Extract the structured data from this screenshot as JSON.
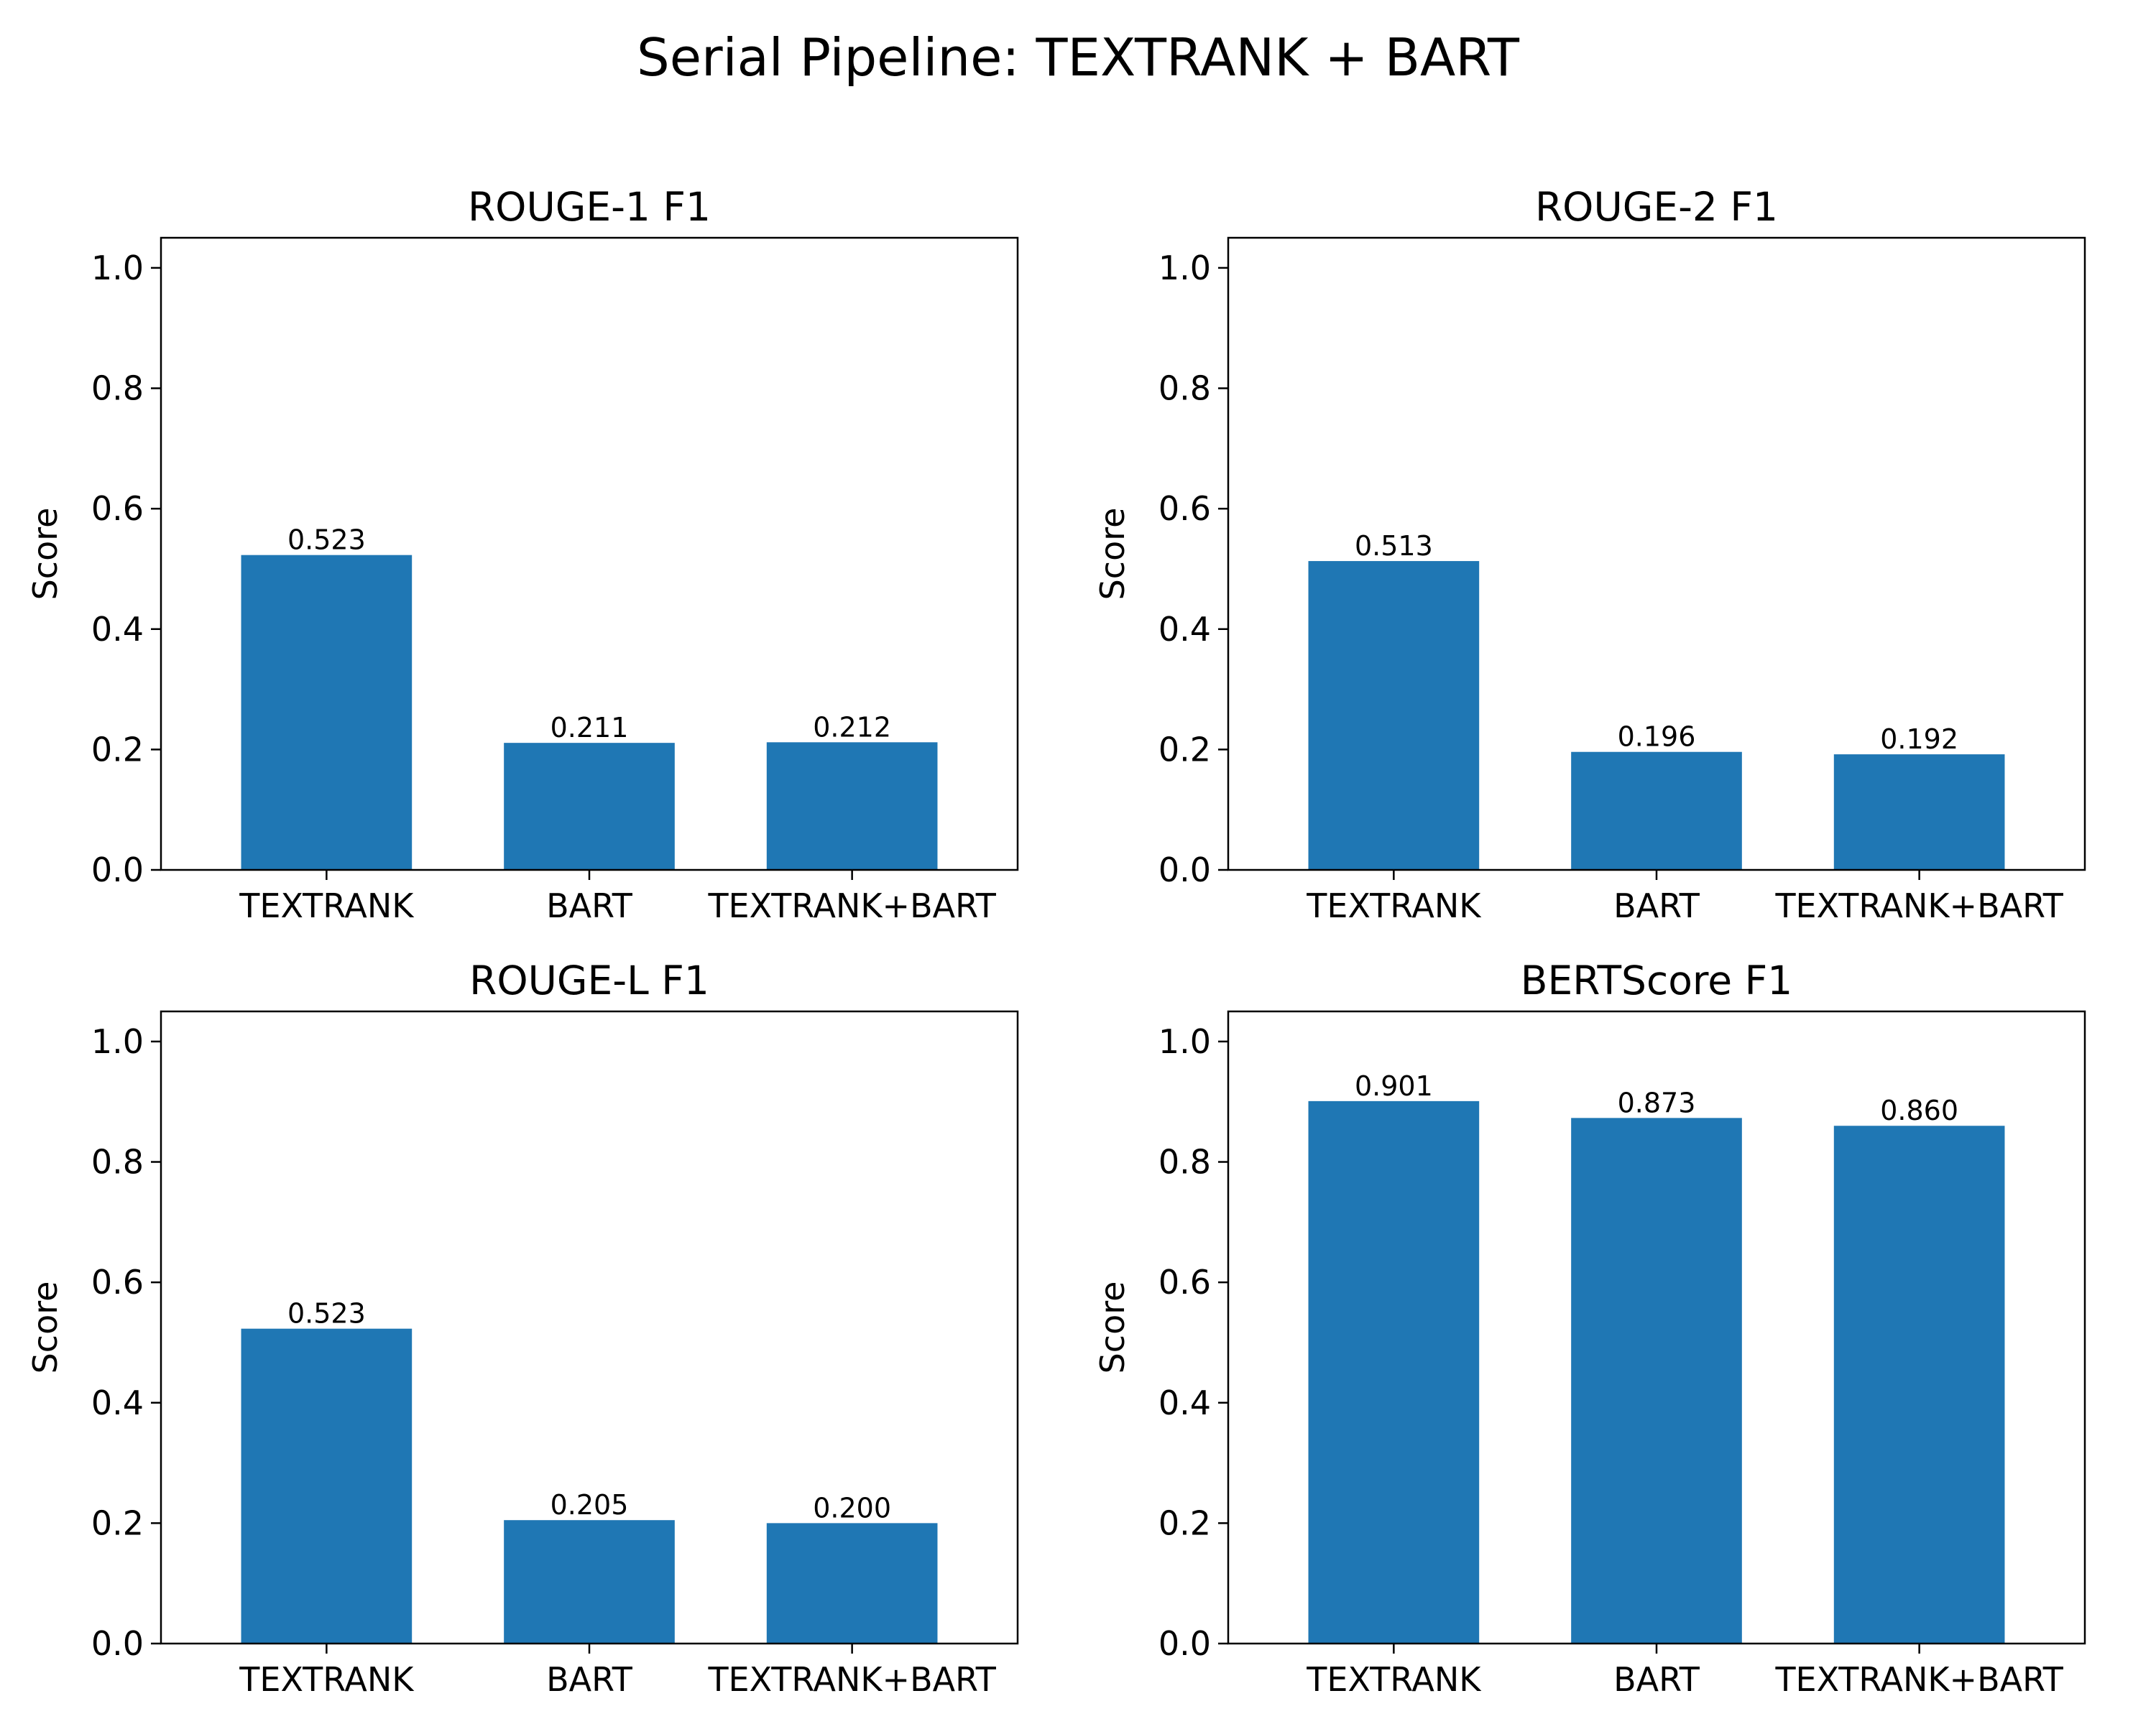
{
  "figure": {
    "suptitle": "Serial Pipeline: TEXTRANK + BART",
    "bar_color": "#1f77b4"
  },
  "chart_data": [
    {
      "type": "bar",
      "title": "ROUGE-1 F1",
      "categories": [
        "TEXTRANK",
        "BART",
        "TEXTRANK+BART"
      ],
      "values": [
        0.523,
        0.211,
        0.212
      ],
      "value_labels": [
        "0.523",
        "0.211",
        "0.212"
      ],
      "xlabel": "",
      "ylabel": "Score",
      "ylim": [
        0,
        1.05
      ],
      "yticks": [
        0.0,
        0.2,
        0.4,
        0.6,
        0.8,
        1.0
      ],
      "ytick_labels": [
        "0.0",
        "0.2",
        "0.4",
        "0.6",
        "0.8",
        "1.0"
      ],
      "grid": false,
      "legend": "none"
    },
    {
      "type": "bar",
      "title": "ROUGE-2 F1",
      "categories": [
        "TEXTRANK",
        "BART",
        "TEXTRANK+BART"
      ],
      "values": [
        0.513,
        0.196,
        0.192
      ],
      "value_labels": [
        "0.513",
        "0.196",
        "0.192"
      ],
      "xlabel": "",
      "ylabel": "Score",
      "ylim": [
        0,
        1.05
      ],
      "yticks": [
        0.0,
        0.2,
        0.4,
        0.6,
        0.8,
        1.0
      ],
      "ytick_labels": [
        "0.0",
        "0.2",
        "0.4",
        "0.6",
        "0.8",
        "1.0"
      ],
      "grid": false,
      "legend": "none"
    },
    {
      "type": "bar",
      "title": "ROUGE-L F1",
      "categories": [
        "TEXTRANK",
        "BART",
        "TEXTRANK+BART"
      ],
      "values": [
        0.523,
        0.205,
        0.2
      ],
      "value_labels": [
        "0.523",
        "0.205",
        "0.200"
      ],
      "xlabel": "",
      "ylabel": "Score",
      "ylim": [
        0,
        1.05
      ],
      "yticks": [
        0.0,
        0.2,
        0.4,
        0.6,
        0.8,
        1.0
      ],
      "ytick_labels": [
        "0.0",
        "0.2",
        "0.4",
        "0.6",
        "0.8",
        "1.0"
      ],
      "grid": false,
      "legend": "none"
    },
    {
      "type": "bar",
      "title": "BERTScore F1",
      "categories": [
        "TEXTRANK",
        "BART",
        "TEXTRANK+BART"
      ],
      "values": [
        0.901,
        0.873,
        0.86
      ],
      "value_labels": [
        "0.901",
        "0.873",
        "0.860"
      ],
      "xlabel": "",
      "ylabel": "Score",
      "ylim": [
        0,
        1.05
      ],
      "yticks": [
        0.0,
        0.2,
        0.4,
        0.6,
        0.8,
        1.0
      ],
      "ytick_labels": [
        "0.0",
        "0.2",
        "0.4",
        "0.6",
        "0.8",
        "1.0"
      ],
      "grid": false,
      "legend": "none"
    }
  ]
}
